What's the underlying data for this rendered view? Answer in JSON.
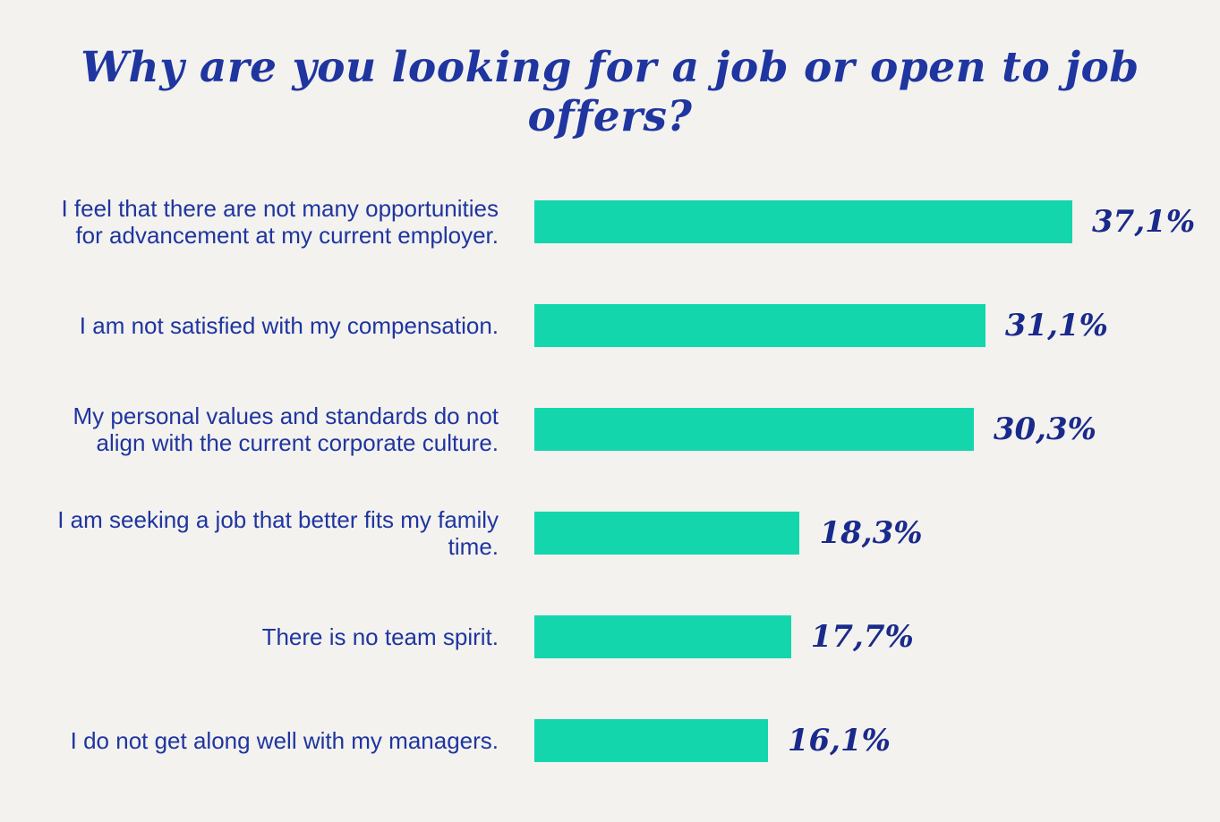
{
  "chart_data": {
    "type": "bar",
    "title": "Why are you looking for a job or open to job offers?",
    "categories": [
      "I feel that there are not many opportunities for advancement at my current employer.",
      "I am not satisfied with my compensation.",
      "My personal values and standards do not align with the current corporate culture.",
      "I am seeking a job that better fits my family time.",
      "There is no team spirit.",
      "I do not get along well with my managers."
    ],
    "values": [
      37.1,
      31.1,
      30.3,
      18.3,
      17.7,
      16.1
    ],
    "value_labels": [
      "37,1%",
      "31,1%",
      "30,3%",
      "18,3%",
      "17,7%",
      "16,1%"
    ],
    "color": "#14d6ad"
  }
}
